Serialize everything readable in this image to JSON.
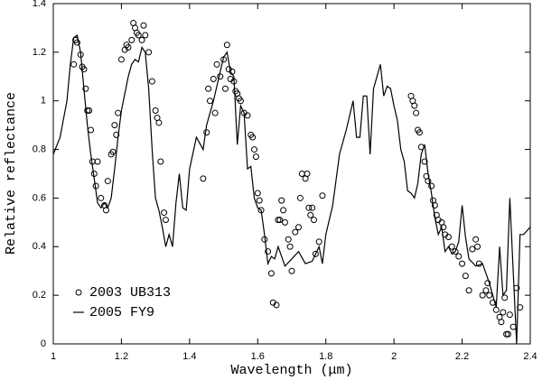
{
  "chart_data": {
    "type": "scatter",
    "xlabel": "Wavelength (μm)",
    "ylabel": "Relative reflectance",
    "xlim": [
      1,
      2.4
    ],
    "ylim": [
      0,
      1.4
    ],
    "xticks": [
      1,
      1.2,
      1.4,
      1.6,
      1.8,
      2,
      2.2,
      2.4
    ],
    "yticks": [
      0,
      0.2,
      0.4,
      0.6,
      0.8,
      1,
      1.2,
      1.4
    ],
    "legend": "lower left",
    "series": [
      {
        "name": "2003 UB313",
        "mode": "markers",
        "color": "#000000",
        "x": [
          1.06,
          1.065,
          1.07,
          1.08,
          1.085,
          1.09,
          1.095,
          1.1,
          1.105,
          1.11,
          1.115,
          1.12,
          1.125,
          1.13,
          1.14,
          1.15,
          1.155,
          1.16,
          1.17,
          1.175,
          1.18,
          1.185,
          1.19,
          1.2,
          1.21,
          1.215,
          1.22,
          1.23,
          1.235,
          1.24,
          1.245,
          1.25,
          1.26,
          1.265,
          1.27,
          1.28,
          1.29,
          1.3,
          1.305,
          1.31,
          1.315,
          1.325,
          1.33,
          1.44,
          1.45,
          1.455,
          1.46,
          1.47,
          1.475,
          1.48,
          1.49,
          1.5,
          1.505,
          1.51,
          1.515,
          1.52,
          1.525,
          1.53,
          1.535,
          1.54,
          1.545,
          1.55,
          1.56,
          1.57,
          1.58,
          1.585,
          1.59,
          1.595,
          1.6,
          1.605,
          1.61,
          1.62,
          1.63,
          1.64,
          1.645,
          1.655,
          1.66,
          1.665,
          1.67,
          1.675,
          1.68,
          1.69,
          1.695,
          1.7,
          1.71,
          1.72,
          1.725,
          1.73,
          1.74,
          1.745,
          1.75,
          1.755,
          1.76,
          1.765,
          1.77,
          1.78,
          1.79,
          2.05,
          2.055,
          2.06,
          2.065,
          2.07,
          2.075,
          2.08,
          2.09,
          2.095,
          2.1,
          2.11,
          2.115,
          2.12,
          2.125,
          2.13,
          2.14,
          2.145,
          2.15,
          2.16,
          2.17,
          2.18,
          2.19,
          2.2,
          2.21,
          2.22,
          2.23,
          2.24,
          2.245,
          2.25,
          2.26,
          2.27,
          2.275,
          2.28,
          2.29,
          2.3,
          2.31,
          2.315,
          2.32,
          2.325,
          2.33,
          2.335,
          2.34,
          2.35,
          2.36,
          2.37
        ],
        "values": [
          1.15,
          1.25,
          1.24,
          1.19,
          1.14,
          1.13,
          1.05,
          0.96,
          0.96,
          0.88,
          0.75,
          0.7,
          0.65,
          0.75,
          0.6,
          0.57,
          0.55,
          0.67,
          0.78,
          0.79,
          0.9,
          0.86,
          0.95,
          1.17,
          1.21,
          1.23,
          1.22,
          1.25,
          1.32,
          1.3,
          1.28,
          1.27,
          1.25,
          1.31,
          1.27,
          1.2,
          1.08,
          0.96,
          0.93,
          0.91,
          0.75,
          0.54,
          0.51,
          0.68,
          0.87,
          1.05,
          1.0,
          1.09,
          0.95,
          1.15,
          1.1,
          1.17,
          1.05,
          1.23,
          1.13,
          1.09,
          1.12,
          1.08,
          1.04,
          1.03,
          1.01,
          1.0,
          0.95,
          0.94,
          0.86,
          0.85,
          0.8,
          0.77,
          0.62,
          0.59,
          0.55,
          0.43,
          0.38,
          0.29,
          0.17,
          0.16,
          0.51,
          0.51,
          0.59,
          0.55,
          0.5,
          0.43,
          0.4,
          0.3,
          0.46,
          0.48,
          0.6,
          0.7,
          0.68,
          0.7,
          0.56,
          0.53,
          0.56,
          0.51,
          0.37,
          0.42,
          0.61,
          1.02,
          1.0,
          0.98,
          0.95,
          0.88,
          0.87,
          0.81,
          0.75,
          0.69,
          0.67,
          0.65,
          0.59,
          0.57,
          0.53,
          0.51,
          0.5,
          0.48,
          0.45,
          0.44,
          0.4,
          0.38,
          0.36,
          0.33,
          0.28,
          0.22,
          0.39,
          0.43,
          0.4,
          0.33,
          0.2,
          0.22,
          0.25,
          0.2,
          0.17,
          0.14,
          0.11,
          0.09,
          0.13,
          0.19,
          0.04,
          0.04,
          0.12,
          0.07,
          0.23,
          0.15
        ]
      },
      {
        "name": "2005 FY9",
        "mode": "line",
        "color": "#000000",
        "x": [
          1.0,
          1.02,
          1.04,
          1.05,
          1.06,
          1.07,
          1.08,
          1.09,
          1.1,
          1.11,
          1.12,
          1.13,
          1.14,
          1.15,
          1.16,
          1.17,
          1.18,
          1.19,
          1.2,
          1.21,
          1.22,
          1.23,
          1.24,
          1.25,
          1.26,
          1.27,
          1.28,
          1.29,
          1.3,
          1.31,
          1.32,
          1.33,
          1.34,
          1.35,
          1.36,
          1.37,
          1.38,
          1.39,
          1.4,
          1.42,
          1.44,
          1.45,
          1.47,
          1.49,
          1.5,
          1.51,
          1.52,
          1.53,
          1.54,
          1.55,
          1.56,
          1.57,
          1.58,
          1.59,
          1.6,
          1.61,
          1.62,
          1.63,
          1.64,
          1.65,
          1.66,
          1.67,
          1.68,
          1.7,
          1.72,
          1.74,
          1.76,
          1.78,
          1.79,
          1.8,
          1.82,
          1.84,
          1.86,
          1.88,
          1.89,
          1.9,
          1.91,
          1.92,
          1.93,
          1.94,
          1.95,
          1.96,
          1.97,
          1.98,
          1.99,
          2.0,
          2.01,
          2.02,
          2.03,
          2.04,
          2.05,
          2.06,
          2.07,
          2.08,
          2.09,
          2.1,
          2.11,
          2.12,
          2.13,
          2.14,
          2.15,
          2.16,
          2.17,
          2.18,
          2.19,
          2.2,
          2.21,
          2.22,
          2.24,
          2.26,
          2.28,
          2.29,
          2.3,
          2.31,
          2.32,
          2.33,
          2.34,
          2.35,
          2.36,
          2.37,
          2.38,
          2.4
        ],
        "values": [
          0.78,
          0.85,
          1.0,
          1.15,
          1.26,
          1.27,
          1.2,
          1.05,
          0.9,
          0.78,
          0.68,
          0.58,
          0.56,
          0.58,
          0.56,
          0.6,
          0.72,
          0.85,
          0.96,
          1.03,
          1.1,
          1.15,
          1.17,
          1.16,
          1.22,
          1.2,
          1.05,
          0.8,
          0.6,
          0.55,
          0.48,
          0.4,
          0.45,
          0.4,
          0.58,
          0.7,
          0.56,
          0.55,
          0.72,
          0.85,
          0.8,
          0.9,
          1.0,
          1.12,
          1.18,
          1.2,
          1.12,
          1.1,
          0.82,
          0.98,
          0.95,
          0.72,
          0.73,
          0.6,
          0.56,
          0.55,
          0.45,
          0.33,
          0.36,
          0.35,
          0.4,
          0.36,
          0.32,
          0.35,
          0.38,
          0.33,
          0.34,
          0.4,
          0.33,
          0.45,
          0.57,
          0.78,
          0.88,
          1.0,
          0.85,
          0.85,
          1.02,
          1.02,
          0.78,
          1.05,
          1.1,
          1.15,
          1.02,
          1.06,
          1.05,
          0.98,
          0.92,
          0.8,
          0.75,
          0.63,
          0.62,
          0.6,
          0.66,
          0.78,
          0.82,
          0.7,
          0.62,
          0.52,
          0.45,
          0.48,
          0.38,
          0.4,
          0.37,
          0.38,
          0.42,
          0.57,
          0.44,
          0.35,
          0.32,
          0.33,
          0.25,
          0.2,
          0.15,
          0.4,
          0.2,
          0.22,
          0.6,
          0.3,
          0.0,
          0.45,
          0.45,
          0.48
        ]
      }
    ]
  }
}
